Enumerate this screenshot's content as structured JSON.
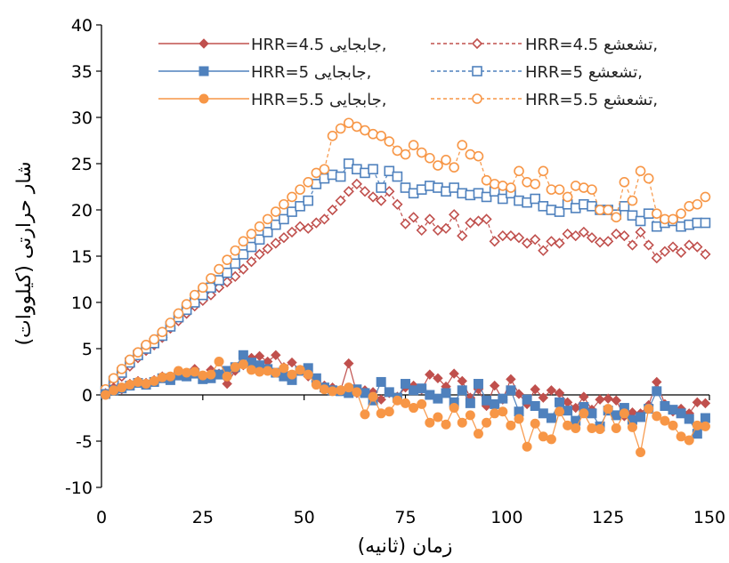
{
  "chart_data": {
    "type": "line",
    "xlabel": "زمان (ثانیه)",
    "ylabel": "شار حرارتی (کیلووات)",
    "xlim": [
      0,
      150
    ],
    "ylim": [
      -10,
      40
    ],
    "xticks": [
      0,
      25,
      50,
      75,
      100,
      125,
      150
    ],
    "yticks": [
      -10,
      -5,
      0,
      5,
      10,
      15,
      20,
      25,
      30,
      35,
      40
    ],
    "grid": false,
    "legend_position": "top-center",
    "colors": {
      "red": "#C0504D",
      "blue": "#4F81BD",
      "orange": "#F79646"
    },
    "x": [
      1,
      3,
      5,
      7,
      9,
      11,
      13,
      15,
      17,
      19,
      21,
      23,
      25,
      27,
      29,
      31,
      33,
      35,
      37,
      39,
      41,
      43,
      45,
      47,
      49,
      51,
      53,
      55,
      57,
      59,
      61,
      63,
      65,
      67,
      69,
      71,
      73,
      75,
      77,
      79,
      81,
      83,
      85,
      87,
      89,
      91,
      93,
      95,
      97,
      99,
      101,
      103,
      105,
      107,
      109,
      111,
      113,
      115,
      117,
      119,
      121,
      123,
      125,
      127,
      129,
      131,
      133,
      135,
      137,
      139,
      141,
      143,
      145,
      147,
      149
    ],
    "series": [
      {
        "name": "HRR=4.5 جابجایی,",
        "color": "#C0504D",
        "style": "solid",
        "marker": "diamond-filled",
        "values": [
          0.2,
          0.8,
          0.6,
          1.2,
          1.5,
          1.3,
          1.6,
          2.0,
          1.8,
          2.5,
          2.2,
          2.8,
          2.0,
          2.7,
          2.3,
          1.2,
          2.6,
          3.2,
          4.0,
          4.2,
          3.6,
          4.3,
          3.0,
          3.5,
          2.7,
          2.0,
          1.5,
          1.0,
          0.8,
          0.5,
          3.4,
          0.2,
          0.5,
          0.3,
          -0.5,
          0.2,
          -0.2,
          0.8,
          1.0,
          0.6,
          2.2,
          1.8,
          0.9,
          2.3,
          1.5,
          -0.3,
          0.6,
          -1.2,
          1.0,
          -0.5,
          1.7,
          0.1,
          -1.0,
          0.6,
          -0.3,
          0.5,
          0.2,
          -0.8,
          -1.4,
          -0.2,
          -1.6,
          -0.5,
          -0.4,
          -0.6,
          -2.3,
          -1.9,
          -2.0,
          -1.1,
          1.4,
          -1.0,
          -1.8,
          -1.5,
          -2.0,
          -0.8,
          -0.9
        ]
      },
      {
        "name": "HRR=5 جابجایی,",
        "color": "#4F81BD",
        "style": "solid",
        "marker": "square-filled",
        "values": [
          0.1,
          0.5,
          0.7,
          1.0,
          1.3,
          1.1,
          1.4,
          1.8,
          1.6,
          2.1,
          2.0,
          2.3,
          1.7,
          1.8,
          2.2,
          2.6,
          3.0,
          4.3,
          3.5,
          3.2,
          2.8,
          2.4,
          2.0,
          1.6,
          2.6,
          2.9,
          1.8,
          0.8,
          0.5,
          0.4,
          0.2,
          0.6,
          0.2,
          -0.6,
          1.4,
          0.3,
          -0.3,
          1.2,
          0.5,
          0.7,
          0.0,
          -0.4,
          0.2,
          -0.8,
          0.5,
          -0.9,
          1.2,
          -0.6,
          -1.0,
          -0.4,
          0.5,
          -1.8,
          -0.5,
          -1.2,
          -2.0,
          -2.5,
          -0.8,
          -1.7,
          -2.8,
          -1.3,
          -2.0,
          -3.4,
          -1.7,
          -2.2,
          -1.4,
          -2.7,
          -2.4,
          -1.5,
          0.4,
          -1.2,
          -1.6,
          -2.0,
          -2.6,
          -4.2,
          -2.5
        ]
      },
      {
        "name": "HRR=5.5 جابجایی,",
        "color": "#F79646",
        "style": "solid",
        "marker": "circle-filled",
        "values": [
          0.0,
          0.5,
          0.8,
          1.1,
          1.4,
          1.2,
          1.5,
          1.9,
          2.0,
          2.6,
          2.4,
          2.5,
          2.1,
          2.2,
          3.6,
          2.0,
          3.0,
          3.3,
          2.7,
          2.5,
          2.6,
          2.4,
          2.9,
          2.2,
          2.7,
          2.2,
          1.1,
          0.6,
          0.4,
          0.5,
          0.8,
          0.3,
          -2.1,
          -0.2,
          -2.0,
          -1.8,
          -0.6,
          -0.9,
          -1.4,
          -1.0,
          -3.0,
          -2.4,
          -3.2,
          -1.4,
          -3.0,
          -2.2,
          -4.2,
          -3.0,
          -2.0,
          -1.8,
          -3.3,
          -2.6,
          -5.6,
          -3.1,
          -4.5,
          -4.8,
          -1.8,
          -3.3,
          -3.6,
          -2.0,
          -3.6,
          -3.7,
          -1.5,
          -3.6,
          -2.0,
          -3.5,
          -6.2,
          -1.5,
          -2.3,
          -2.8,
          -3.3,
          -4.5,
          -4.9,
          -3.3,
          -3.4
        ]
      },
      {
        "name": "HRR=4.5 تشعشع,",
        "color": "#C0504D",
        "style": "dashed",
        "marker": "diamond-open",
        "values": [
          0.2,
          1.2,
          2.0,
          3.1,
          4.0,
          4.8,
          5.4,
          6.2,
          7.2,
          8.0,
          8.8,
          9.6,
          10.2,
          10.8,
          11.6,
          12.2,
          12.8,
          13.6,
          14.4,
          15.2,
          15.8,
          16.4,
          17.0,
          17.6,
          18.2,
          18.0,
          18.6,
          19.0,
          20.0,
          21.0,
          22.0,
          22.8,
          22.0,
          21.4,
          21.0,
          22.0,
          20.6,
          18.5,
          19.2,
          17.8,
          19.0,
          17.8,
          18.0,
          19.5,
          17.2,
          18.6,
          18.8,
          19.0,
          16.6,
          17.2,
          17.2,
          17.0,
          16.4,
          16.8,
          15.6,
          16.6,
          16.4,
          17.4,
          17.2,
          17.6,
          17.0,
          16.5,
          16.6,
          17.4,
          17.2,
          16.2,
          17.6,
          16.2,
          14.8,
          15.5,
          16.0,
          15.4,
          16.2,
          16.0,
          15.2
        ]
      },
      {
        "name": "HRR=5 تشعشع,",
        "color": "#4F81BD",
        "style": "dashed",
        "marker": "square-open",
        "values": [
          0.4,
          1.5,
          2.4,
          3.5,
          4.3,
          5.0,
          5.6,
          6.4,
          7.4,
          8.4,
          9.2,
          10.0,
          10.8,
          11.6,
          12.4,
          13.2,
          14.2,
          15.2,
          16.0,
          16.8,
          17.6,
          18.4,
          19.0,
          19.8,
          20.4,
          21.0,
          22.8,
          23.4,
          23.8,
          23.6,
          25.0,
          24.4,
          24.0,
          24.4,
          22.4,
          24.2,
          23.6,
          22.4,
          21.8,
          22.2,
          22.6,
          22.4,
          22.0,
          22.4,
          21.8,
          21.6,
          21.8,
          21.4,
          22.0,
          21.2,
          21.8,
          21.0,
          20.8,
          21.2,
          20.4,
          20.0,
          19.8,
          20.6,
          20.2,
          20.6,
          20.4,
          20.0,
          20.0,
          19.5,
          20.4,
          19.4,
          18.8,
          19.6,
          18.2,
          18.6,
          18.8,
          18.2,
          18.4,
          18.6,
          18.6
        ]
      },
      {
        "name": "HRR=5.5 تشعشع,",
        "color": "#F79646",
        "style": "dashed",
        "marker": "circle-open",
        "values": [
          0.6,
          1.8,
          2.8,
          3.8,
          4.6,
          5.4,
          6.0,
          6.8,
          7.8,
          8.8,
          9.8,
          10.8,
          11.6,
          12.6,
          13.6,
          14.6,
          15.6,
          16.6,
          17.4,
          18.2,
          19.0,
          19.8,
          20.6,
          21.4,
          22.2,
          23.0,
          24.0,
          24.4,
          28.0,
          28.8,
          29.4,
          29.0,
          28.6,
          28.2,
          28.0,
          27.4,
          26.4,
          26.0,
          27.0,
          26.2,
          25.6,
          24.8,
          25.4,
          24.6,
          27.0,
          26.0,
          25.8,
          23.2,
          22.8,
          22.6,
          22.4,
          24.2,
          23.0,
          22.8,
          24.2,
          22.2,
          22.2,
          21.4,
          22.6,
          22.4,
          22.2,
          20.0,
          20.0,
          19.2,
          23.0,
          21.0,
          24.2,
          23.4,
          19.6,
          19.0,
          19.0,
          19.6,
          20.4,
          20.6,
          21.4
        ]
      }
    ]
  }
}
